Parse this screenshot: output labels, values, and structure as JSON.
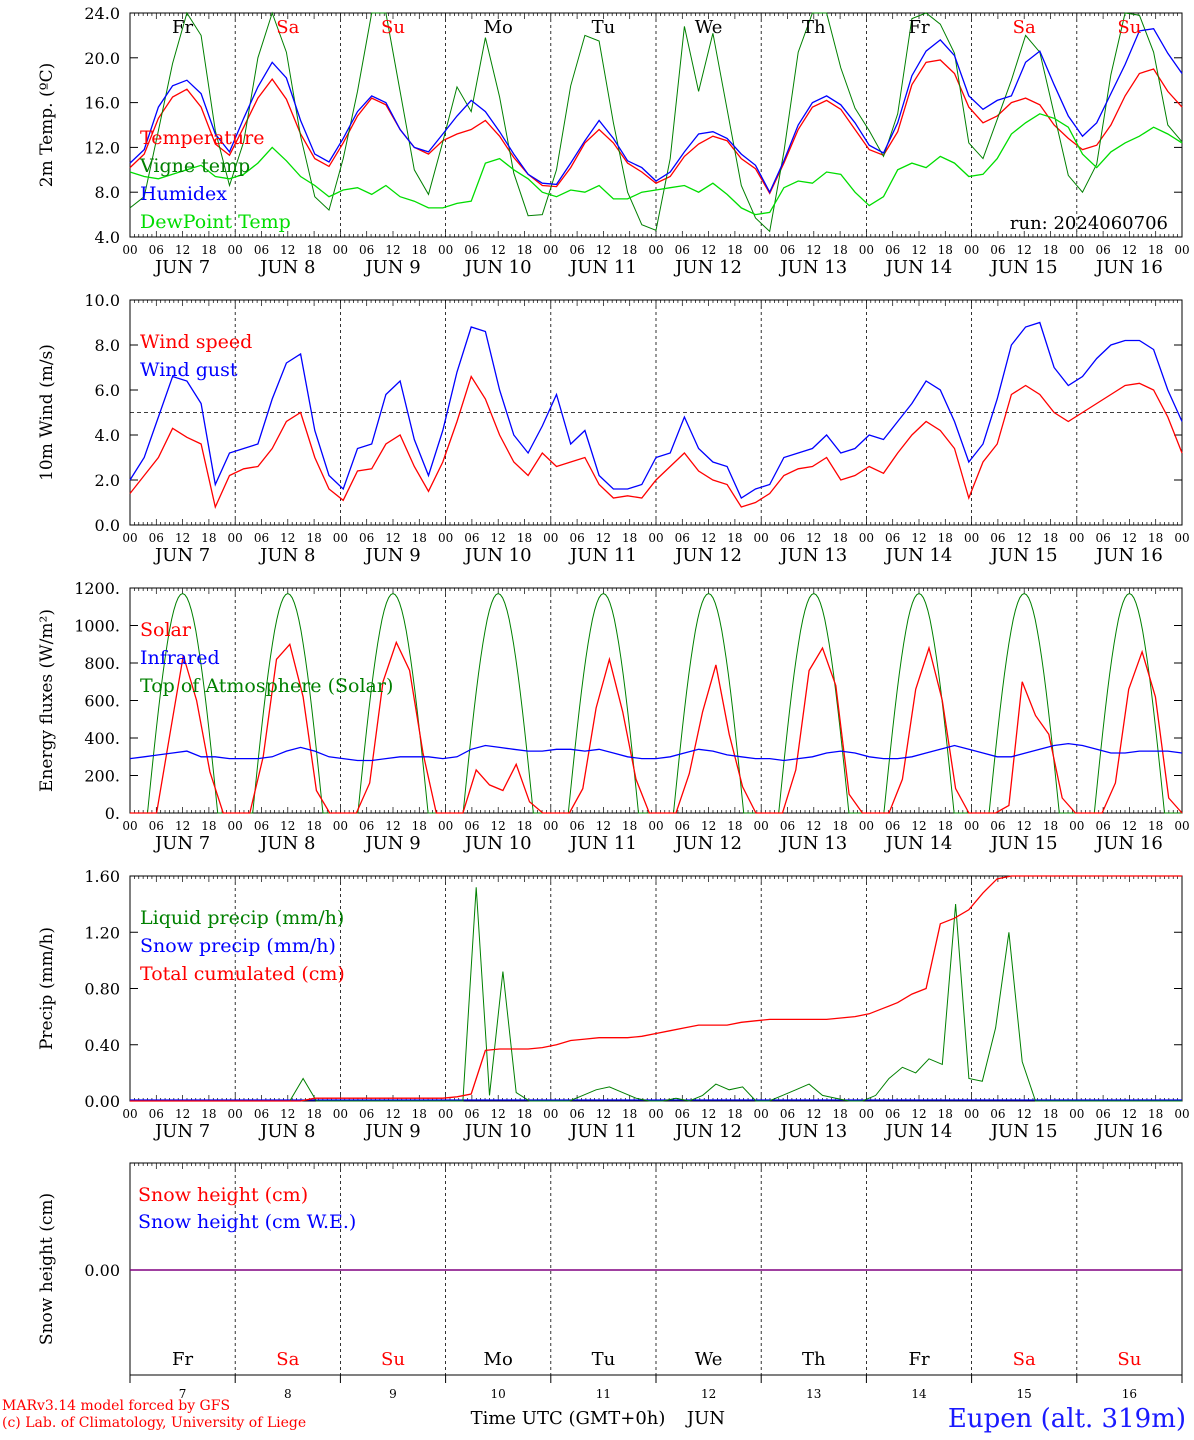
{
  "colors": {
    "red": "#ff0000",
    "blue": "#0000ff",
    "dark_green": "#008000",
    "light_green": "#00dd00",
    "purple": "#800080",
    "axis": "#000000"
  },
  "axis_common": {
    "hour_ticks": [
      "00",
      "06",
      "12",
      "18"
    ],
    "final_hour": "00",
    "month": "JUN",
    "days": [
      "7",
      "8",
      "9",
      "10",
      "11",
      "12",
      "13",
      "14",
      "15",
      "16"
    ],
    "weekdays": [
      "Fr",
      "Sa",
      "Su",
      "Mo",
      "Tu",
      "We",
      "Th",
      "Fr",
      "Sa",
      "Su"
    ],
    "weekday_colors": [
      "black",
      "red",
      "red",
      "black",
      "black",
      "black",
      "black",
      "black",
      "red",
      "red"
    ],
    "x_label": "Time UTC (GMT+0h)",
    "x_month_label": "JUN",
    "x_ticks_bottom": [
      "7",
      "8",
      "9",
      "10",
      "11",
      "12",
      "13",
      "14",
      "15",
      "16"
    ]
  },
  "chart_data": [
    {
      "type": "line",
      "panel": "temperature",
      "ylabel": "2m Temp. (ºC)",
      "ylim": [
        4.0,
        24.0
      ],
      "yticks": [
        "4.0",
        "8.0",
        "12.0",
        "16.0",
        "20.0",
        "24.0"
      ],
      "annotation": "run: 2024060706",
      "x_hours_step": 3,
      "series": [
        {
          "name": "Temperature",
          "color": "red",
          "values": [
            10.2,
            11.4,
            14.6,
            16.5,
            17.2,
            15.6,
            12.3,
            11.3,
            13.8,
            16.4,
            18.1,
            16.3,
            13.2,
            11.0,
            10.3,
            12.4,
            14.8,
            16.4,
            15.8,
            13.6,
            12.0,
            11.4,
            12.6,
            13.2,
            13.6,
            14.4,
            13.0,
            11.1,
            9.6,
            8.6,
            8.5,
            10.2,
            12.4,
            13.6,
            12.4,
            10.6,
            9.8,
            8.8,
            9.4,
            11.2,
            12.3,
            13.0,
            12.6,
            11.0,
            10.1,
            7.9,
            10.6,
            13.6,
            15.6,
            16.2,
            15.4,
            13.6,
            11.8,
            11.3,
            13.4,
            17.6,
            19.6,
            19.8,
            18.6,
            15.6,
            14.2,
            14.8,
            16.0,
            16.4,
            15.8,
            14.0,
            12.8,
            11.8,
            12.2,
            14.0,
            16.6,
            18.6,
            19.0,
            17.0,
            15.6
          ]
        },
        {
          "name": "Vigne temp",
          "color": "dark_green",
          "values": [
            6.6,
            7.6,
            13.5,
            19.5,
            25.5,
            22.0,
            13.5,
            8.6,
            12.5,
            20.0,
            26.0,
            20.5,
            13.0,
            7.6,
            6.4,
            11.0,
            17.0,
            24.5,
            26.0,
            17.0,
            10.0,
            7.8,
            12.5,
            17.4,
            15.2,
            21.8,
            16.5,
            9.7,
            5.9,
            6.0,
            10.0,
            17.5,
            22.0,
            21.5,
            14.2,
            8.0,
            5.1,
            4.6,
            11.0,
            22.8,
            17.0,
            22.2,
            15.4,
            8.6,
            5.7,
            4.5,
            11.6,
            20.5,
            24.5,
            25.5,
            19.1,
            15.5,
            13.5,
            11.2,
            15.0,
            23.5,
            25.5,
            23.0,
            20.4,
            12.4,
            11.0,
            14.5,
            18.0,
            22.0,
            20.5,
            15.0,
            9.5,
            8.0,
            10.5,
            18.5,
            24.5,
            23.8,
            20.5,
            14.0,
            12.5
          ]
        },
        {
          "name": "Humidex",
          "color": "blue",
          "values": [
            10.6,
            11.8,
            15.6,
            17.5,
            18.0,
            16.8,
            13.2,
            11.6,
            14.6,
            17.4,
            19.6,
            18.2,
            14.4,
            11.4,
            10.7,
            12.8,
            15.2,
            16.6,
            16.0,
            13.6,
            12.0,
            11.6,
            13.2,
            14.8,
            16.2,
            15.2,
            13.4,
            11.4,
            9.6,
            8.8,
            8.7,
            10.6,
            12.6,
            14.4,
            12.8,
            10.8,
            10.2,
            9.0,
            9.8,
            11.6,
            13.2,
            13.4,
            12.8,
            11.4,
            10.4,
            8.0,
            10.8,
            14.0,
            16.0,
            16.6,
            15.8,
            14.2,
            12.2,
            11.5,
            14.2,
            18.4,
            20.6,
            21.6,
            20.2,
            16.6,
            15.4,
            16.2,
            16.6,
            19.6,
            20.6,
            17.6,
            14.8,
            13.0,
            14.2,
            16.8,
            19.4,
            22.4,
            22.6,
            20.4,
            18.6
          ]
        },
        {
          "name": "DewPoint Temp",
          "color": "light_green",
          "values": [
            9.8,
            9.4,
            9.2,
            9.6,
            10.0,
            10.4,
            9.4,
            9.2,
            9.6,
            10.6,
            12.0,
            10.8,
            9.4,
            8.6,
            7.6,
            8.2,
            8.4,
            7.8,
            8.6,
            7.6,
            7.2,
            6.6,
            6.6,
            7.0,
            7.2,
            10.6,
            11.0,
            10.0,
            9.2,
            8.0,
            7.6,
            8.2,
            8.0,
            8.6,
            7.4,
            7.4,
            8.0,
            8.2,
            8.4,
            8.6,
            8.0,
            8.8,
            7.8,
            6.6,
            6.0,
            6.2,
            8.4,
            9.0,
            8.8,
            9.8,
            9.6,
            8.0,
            6.8,
            7.6,
            10.0,
            10.6,
            10.2,
            11.2,
            10.6,
            9.4,
            9.6,
            11.0,
            13.2,
            14.2,
            15.0,
            14.6,
            13.8,
            11.4,
            10.2,
            11.6,
            12.4,
            13.0,
            13.8,
            13.2,
            12.4
          ]
        }
      ]
    },
    {
      "type": "line",
      "panel": "wind",
      "ylabel": "10m Wind (m/s)",
      "ylim": [
        0.0,
        10.0
      ],
      "yticks": [
        "0.0",
        "2.0",
        "4.0",
        "6.0",
        "8.0",
        "10.0"
      ],
      "reference_line": 5.0,
      "x_hours_step": 3,
      "series": [
        {
          "name": "Wind speed",
          "color": "red",
          "values": [
            1.4,
            2.2,
            3.0,
            4.3,
            3.9,
            3.6,
            0.8,
            2.2,
            2.5,
            2.6,
            3.4,
            4.6,
            5.0,
            3.0,
            1.6,
            1.1,
            2.4,
            2.5,
            3.6,
            4.0,
            2.6,
            1.5,
            2.8,
            4.6,
            6.6,
            5.6,
            4.0,
            2.8,
            2.2,
            3.2,
            2.6,
            2.8,
            3.0,
            1.8,
            1.2,
            1.3,
            1.2,
            2.0,
            2.6,
            3.2,
            2.4,
            2.0,
            1.8,
            0.8,
            1.0,
            1.4,
            2.2,
            2.5,
            2.6,
            3.0,
            2.0,
            2.2,
            2.6,
            2.3,
            3.2,
            4.0,
            4.6,
            4.2,
            3.4,
            1.2,
            2.8,
            3.6,
            5.8,
            6.2,
            5.8,
            5.0,
            4.6,
            5.0,
            5.4,
            5.8,
            6.2,
            6.3,
            6.0,
            4.8,
            3.2
          ]
        },
        {
          "name": "Wind gust",
          "color": "blue",
          "values": [
            2.0,
            3.0,
            4.8,
            6.6,
            6.4,
            5.4,
            1.8,
            3.2,
            3.4,
            3.6,
            5.6,
            7.2,
            7.6,
            4.2,
            2.2,
            1.6,
            3.4,
            3.6,
            5.8,
            6.4,
            3.8,
            2.2,
            4.2,
            6.8,
            8.8,
            8.6,
            6.0,
            4.0,
            3.2,
            4.4,
            5.8,
            3.6,
            4.2,
            2.2,
            1.6,
            1.6,
            1.8,
            3.0,
            3.2,
            4.8,
            3.4,
            2.8,
            2.6,
            1.2,
            1.6,
            1.8,
            3.0,
            3.2,
            3.4,
            4.0,
            3.2,
            3.4,
            4.0,
            3.8,
            4.6,
            5.4,
            6.4,
            6.0,
            4.6,
            2.8,
            3.6,
            5.6,
            8.0,
            8.8,
            9.0,
            7.0,
            6.2,
            6.6,
            7.4,
            8.0,
            8.2,
            8.2,
            7.8,
            6.0,
            4.6
          ]
        }
      ]
    },
    {
      "type": "line",
      "panel": "energy",
      "ylabel": "Energy fluxes (W/m²)",
      "ylim": [
        0,
        1200
      ],
      "yticks": [
        "0.",
        "200.",
        "400.",
        "600.",
        "800.",
        "1000.",
        "1200."
      ],
      "x_hours_step": 3,
      "series": [
        {
          "name": "Solar",
          "color": "red",
          "values": [
            0,
            0,
            0,
            420,
            840,
            600,
            220,
            0,
            0,
            0,
            300,
            820,
            900,
            620,
            120,
            0,
            0,
            0,
            160,
            700,
            910,
            760,
            320,
            0,
            0,
            0,
            230,
            150,
            120,
            260,
            60,
            0,
            0,
            0,
            130,
            560,
            820,
            540,
            180,
            0,
            0,
            0,
            210,
            540,
            790,
            420,
            140,
            0,
            0,
            0,
            230,
            760,
            880,
            680,
            100,
            0,
            0,
            0,
            180,
            660,
            880,
            600,
            130,
            0,
            0,
            0,
            40,
            700,
            520,
            420,
            80,
            0,
            0,
            0,
            160,
            660,
            860,
            620,
            80,
            0
          ]
        },
        {
          "name": "Infrared",
          "color": "blue",
          "values": [
            290,
            300,
            310,
            320,
            330,
            300,
            300,
            290,
            290,
            290,
            300,
            330,
            350,
            330,
            300,
            290,
            280,
            280,
            290,
            300,
            300,
            300,
            290,
            300,
            340,
            360,
            350,
            340,
            330,
            330,
            340,
            340,
            330,
            340,
            320,
            300,
            290,
            290,
            300,
            320,
            340,
            330,
            310,
            300,
            290,
            290,
            280,
            290,
            300,
            320,
            330,
            320,
            300,
            290,
            290,
            300,
            320,
            340,
            360,
            340,
            320,
            300,
            300,
            320,
            340,
            360,
            370,
            360,
            340,
            320,
            320,
            330,
            330,
            330,
            320
          ]
        },
        {
          "name": "Top of Atmosphere (Solar)",
          "color": "dark_green",
          "values": []
        }
      ]
    },
    {
      "type": "line",
      "panel": "precip",
      "ylabel": "Precip (mm/h)",
      "ylim": [
        0.0,
        1.6
      ],
      "yticks": [
        "0.00",
        "0.40",
        "0.80",
        "1.20",
        "1.60"
      ],
      "x_hours_step": 3,
      "series": [
        {
          "name": "Liquid precip (mm/h)",
          "color": "dark_green",
          "values": [
            0,
            0,
            0,
            0,
            0,
            0,
            0,
            0,
            0,
            0,
            0,
            0,
            0,
            0.16,
            0,
            0,
            0,
            0,
            0,
            0,
            0,
            0,
            0,
            0,
            0,
            0,
            1.52,
            0.04,
            0.92,
            0.06,
            0,
            0,
            0,
            0,
            0.04,
            0.08,
            0.1,
            0.06,
            0.02,
            0,
            0,
            0.02,
            0,
            0.04,
            0.12,
            0.08,
            0.1,
            0,
            0,
            0.04,
            0.08,
            0.12,
            0.04,
            0.02,
            0,
            0,
            0.04,
            0.16,
            0.24,
            0.2,
            0.3,
            0.26,
            1.4,
            0.16,
            0.14,
            0.52,
            1.2,
            0.28,
            0,
            0,
            0,
            0,
            0,
            0,
            0,
            0,
            0,
            0,
            0,
            0
          ]
        },
        {
          "name": "Snow precip (mm/h)",
          "color": "blue",
          "values": []
        },
        {
          "name": "Total cumulated (cm)",
          "color": "red",
          "values": [
            0,
            0,
            0,
            0,
            0,
            0,
            0,
            0,
            0,
            0,
            0,
            0,
            0,
            0.02,
            0.02,
            0.02,
            0.02,
            0.02,
            0.02,
            0.02,
            0.02,
            0.02,
            0.02,
            0.03,
            0.05,
            0.36,
            0.37,
            0.37,
            0.37,
            0.38,
            0.4,
            0.43,
            0.44,
            0.45,
            0.45,
            0.45,
            0.46,
            0.48,
            0.5,
            0.52,
            0.54,
            0.54,
            0.54,
            0.56,
            0.57,
            0.58,
            0.58,
            0.58,
            0.58,
            0.58,
            0.59,
            0.6,
            0.62,
            0.66,
            0.7,
            0.76,
            0.8,
            1.26,
            1.3,
            1.36,
            1.48,
            1.58,
            1.6,
            1.6,
            1.6,
            1.6,
            1.6,
            1.6,
            1.6,
            1.6,
            1.6,
            1.6,
            1.6,
            1.6,
            1.6
          ]
        }
      ]
    },
    {
      "type": "line",
      "panel": "snow",
      "ylabel": "Snow height (cm)",
      "yticks": [
        "0.00"
      ],
      "series": [
        {
          "name": "Snow height (cm)",
          "color": "red",
          "values": [
            0,
            0
          ]
        },
        {
          "name": "Snow height (cm W.E.)",
          "color": "blue",
          "values": [
            0,
            0
          ]
        }
      ]
    }
  ],
  "footer": {
    "model_line": "MARv3.14 model forced by GFS",
    "credit_line": "(c) Lab. of Climatology, University of Liege",
    "station": "Eupen (alt. 319m)"
  }
}
